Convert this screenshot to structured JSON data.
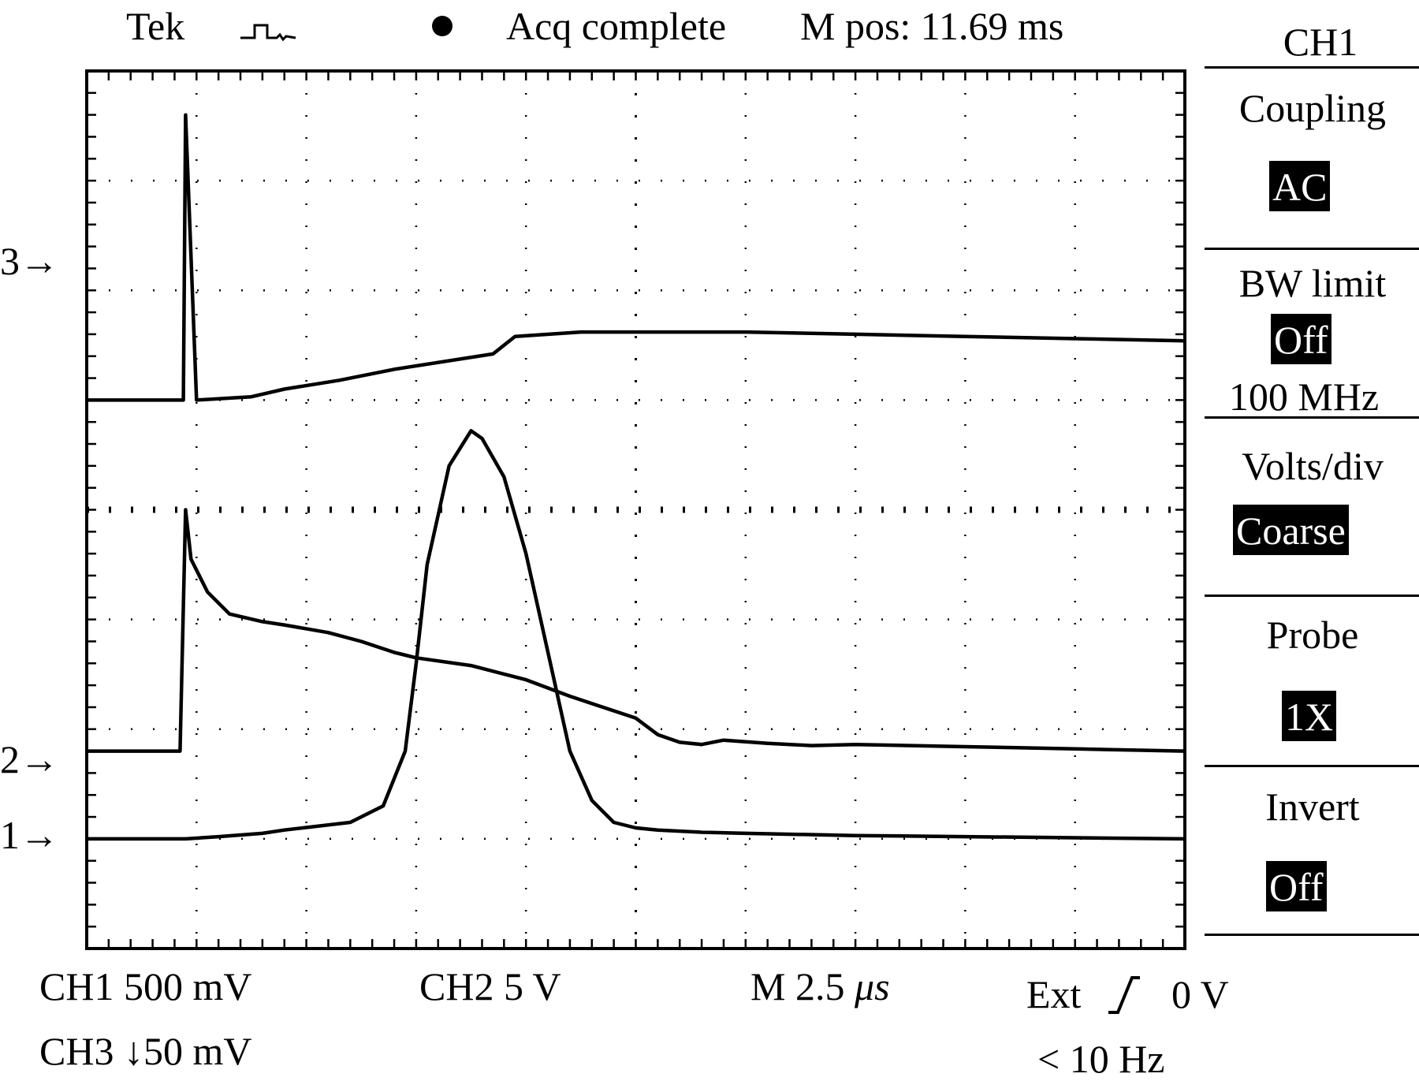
{
  "header": {
    "brand": "Tek",
    "trigger_icon": "square-pulse-icon",
    "status": "Acq complete",
    "mpos_label": "M pos: 11.69 ms"
  },
  "markers": {
    "ch3": "3→",
    "ch2": "2→",
    "ch1": "1→"
  },
  "menu": {
    "channel": "CH1",
    "coupling_label": "Coupling",
    "coupling_value": "AC",
    "bw_label": "BW limit",
    "bw_value": "Off",
    "bw_freq": "100 MHz",
    "volts_label": "Volts/div",
    "volts_value": "Coarse",
    "probe_label": "Probe",
    "probe_value": "1X",
    "invert_label": "Invert",
    "invert_value": "Off"
  },
  "footer": {
    "ch1": "CH1 500 mV",
    "ch3": "CH3 ↓50 mV",
    "ch2": "CH2 5 V",
    "timebase_prefix": "M 2.5 ",
    "timebase_unit": "μs",
    "trigger_source": "Ext",
    "trigger_icon": "rising-edge-icon",
    "trigger_level": "0 V",
    "trigger_freq": "< 10 Hz"
  },
  "chart_data": {
    "type": "line",
    "xlim": [
      0,
      10
    ],
    "ylim": [
      0,
      8
    ],
    "grid": true,
    "series": [
      {
        "name": "3",
        "x": [
          0,
          0.88,
          0.9,
          1.0,
          1.5,
          1.8,
          2.3,
          2.8,
          3.7,
          3.9,
          4.5,
          5.0,
          6.0,
          7.0,
          8.0,
          9.0,
          10.0
        ],
        "y": [
          5.0,
          5.0,
          7.6,
          5.0,
          5.03,
          5.1,
          5.18,
          5.28,
          5.42,
          5.58,
          5.62,
          5.62,
          5.62,
          5.6,
          5.58,
          5.56,
          5.54
        ]
      },
      {
        "name": "2",
        "x": [
          0,
          0.85,
          0.9,
          0.95,
          1.1,
          1.3,
          1.6,
          1.8,
          2.2,
          2.5,
          2.8,
          3.0,
          3.5,
          4.0,
          4.4,
          5.0,
          5.2,
          5.4,
          5.6,
          5.8,
          6.2,
          6.6,
          7.0,
          8.0,
          9.0,
          10.0
        ],
        "y": [
          1.8,
          1.8,
          4.0,
          3.55,
          3.25,
          3.05,
          2.98,
          2.95,
          2.88,
          2.8,
          2.7,
          2.65,
          2.58,
          2.45,
          2.3,
          2.1,
          1.95,
          1.88,
          1.86,
          1.9,
          1.87,
          1.85,
          1.86,
          1.84,
          1.82,
          1.8
        ]
      },
      {
        "name": "1",
        "x": [
          0,
          0.9,
          1.2,
          1.6,
          1.8,
          2.4,
          2.7,
          2.9,
          3.0,
          3.1,
          3.3,
          3.5,
          3.6,
          3.8,
          4.0,
          4.2,
          4.4,
          4.6,
          4.8,
          5.0,
          5.2,
          5.6,
          6.0,
          7.0,
          8.0,
          9.0,
          10.0
        ],
        "y": [
          1.0,
          1.0,
          1.02,
          1.05,
          1.08,
          1.15,
          1.3,
          1.8,
          2.6,
          3.5,
          4.4,
          4.72,
          4.65,
          4.3,
          3.6,
          2.7,
          1.8,
          1.35,
          1.15,
          1.1,
          1.08,
          1.06,
          1.05,
          1.03,
          1.02,
          1.01,
          1.0
        ]
      }
    ]
  }
}
